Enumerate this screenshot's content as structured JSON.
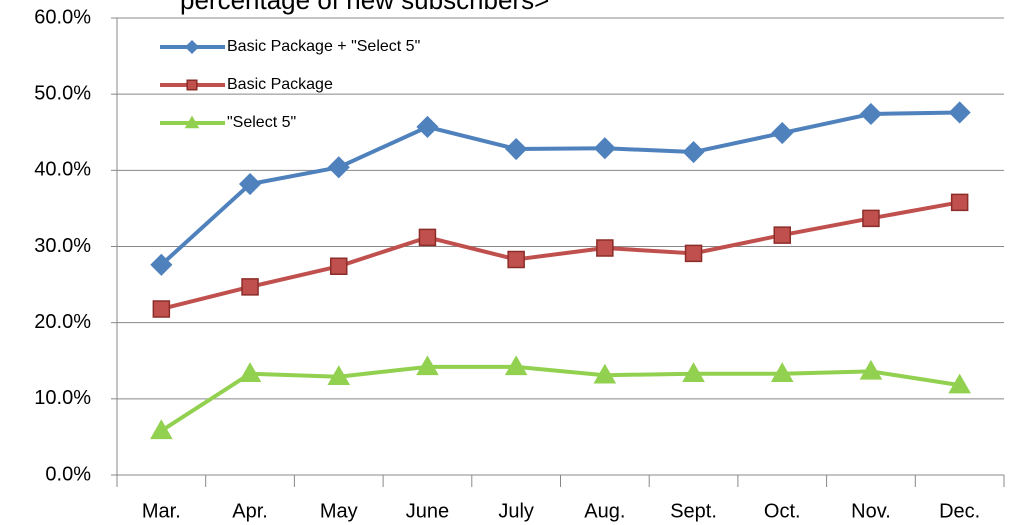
{
  "chart_data": {
    "type": "line",
    "title": "percentage of new subscribers>",
    "categories": [
      "Mar.",
      "Apr.",
      "May",
      "June",
      "July",
      "Aug.",
      "Sept.",
      "Oct.",
      "Nov.",
      "Dec."
    ],
    "series": [
      {
        "name": "Basic Package + \"Select 5\"",
        "color": "#4f81bd",
        "marker": "diamond",
        "values": [
          27.6,
          38.2,
          40.4,
          45.7,
          42.8,
          42.9,
          42.4,
          44.9,
          47.4,
          47.6
        ]
      },
      {
        "name": "Basic Package",
        "color": "#c0504d",
        "marker": "square",
        "values": [
          21.8,
          24.7,
          27.4,
          31.2,
          28.3,
          29.8,
          29.1,
          31.5,
          33.7,
          35.8
        ]
      },
      {
        "name": "\"Select 5\"",
        "color": "#92d050",
        "marker": "triangle",
        "values": [
          5.8,
          13.3,
          12.9,
          14.2,
          14.2,
          13.1,
          13.3,
          13.3,
          13.6,
          11.8
        ]
      }
    ],
    "ylim": [
      0,
      60
    ],
    "yticks": [
      {
        "value": 0,
        "label": "0.0%"
      },
      {
        "value": 10,
        "label": "10.0%"
      },
      {
        "value": 20,
        "label": "20.0%"
      },
      {
        "value": 30,
        "label": "30.0%"
      },
      {
        "value": 40,
        "label": "40.0%"
      },
      {
        "value": 50,
        "label": "50.0%"
      },
      {
        "value": 60,
        "label": "60.0%"
      }
    ],
    "grid": true,
    "legend": "upper left"
  }
}
